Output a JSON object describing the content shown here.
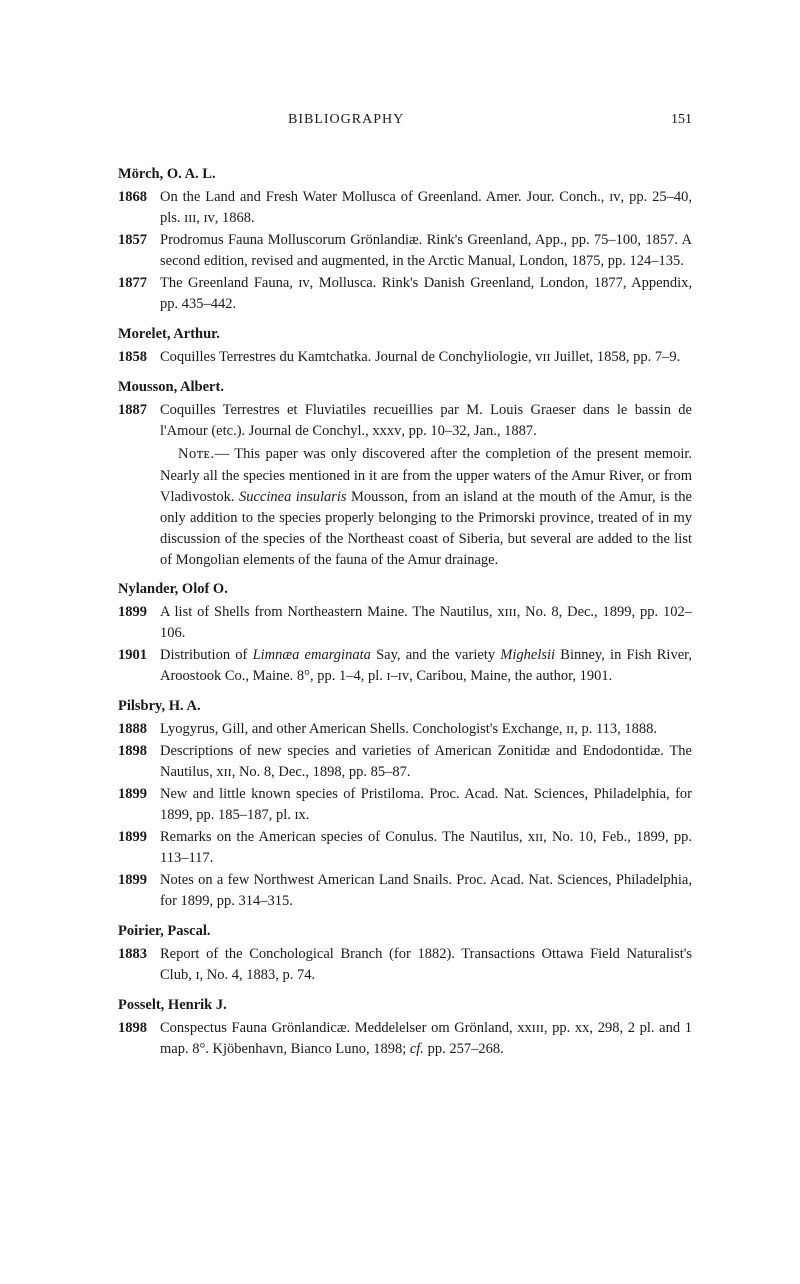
{
  "header": {
    "title": "BIBLIOGRAPHY",
    "page": "151"
  },
  "sections": [
    {
      "author": "Mörch, O. A. L.",
      "entries": [
        {
          "year": "1868",
          "text": "On the Land and Fresh Water Mollusca of Greenland. Amer. Jour. Conch., ɪᴠ, pp. 25–40, pls. ɪɪɪ, ɪᴠ, 1868."
        },
        {
          "year": "1857",
          "text": "Prodromus Fauna Molluscorum Grönlandiæ. Rink's Greenland, App., pp. 75–100, 1857. A second edition, revised and augmented, in the Arctic Manual, London, 1875, pp. 124–135."
        },
        {
          "year": "1877",
          "text": "The Greenland Fauna, ɪᴠ, Mollusca. Rink's Danish Greenland, London, 1877, Appendix, pp. 435–442."
        }
      ]
    },
    {
      "author": "Morelet, Arthur.",
      "entries": [
        {
          "year": "1858",
          "text": "Coquilles Terrestres du Kamtchatka. Journal de Conchyliologie, ᴠɪɪ Juillet, 1858, pp. 7–9."
        }
      ]
    },
    {
      "author": "Mousson, Albert.",
      "entries": [
        {
          "year": "1887",
          "text": "Coquilles Terrestres et Fluviatiles recueillies par M. Louis Graeser dans le bassin de l'Amour (etc.). Journal de Conchyl., xxxᴠ, pp. 10–32, Jan., 1887."
        }
      ],
      "note": {
        "lead": "Nᴏᴛᴇ.",
        "body": "— This paper was only discovered after the completion of the present memoir. Nearly all the species mentioned in it are from the upper waters of the Amur River, or from Vladivostok. <span class=\"ital\">Succinea insularis</span> Mousson, from an island at the mouth of the Amur, is the only addition to the species properly belonging to the Primorski province, treated of in my discussion of the species of the Northeast coast of Siberia, but several are added to the list of Mongolian elements of the fauna of the Amur drainage."
      }
    },
    {
      "author": "Nylander, Olof O.",
      "entries": [
        {
          "year": "1899",
          "text": "A list of Shells from Northeastern Maine. The Nautilus, xɪɪɪ, No. 8, Dec., 1899, pp. 102–106."
        },
        {
          "year": "1901",
          "text": "Distribution of <span class=\"ital\">Limnæa emarginata</span> Say, and the variety <span class=\"ital\">Mighelsii</span> Binney, in Fish River, Aroostook Co., Maine. 8°, pp. 1–4, pl. ɪ–ɪᴠ, Caribou, Maine, the author, 1901."
        }
      ]
    },
    {
      "author": "Pilsbry, H. A.",
      "entries": [
        {
          "year": "1888",
          "text": "Lyogyrus, Gill, and other American Shells. Conchologist's Exchange, ɪɪ, p. 113, 1888."
        },
        {
          "year": "1898",
          "text": "Descriptions of new species and varieties of American Zonitidæ and Endodontidæ. The Nautilus, xɪɪ, No. 8, Dec., 1898, pp. 85–87."
        },
        {
          "year": "1899",
          "text": "New and little known species of Pristiloma. Proc. Acad. Nat. Sciences, Philadelphia, for 1899, pp. 185–187, pl. ɪx."
        },
        {
          "year": "1899",
          "text": "Remarks on the American species of Conulus. The Nautilus, xɪɪ, No. 10, Feb., 1899, pp. 113–117."
        },
        {
          "year": "1899",
          "text": "Notes on a few Northwest American Land Snails. Proc. Acad. Nat. Sciences, Philadelphia, for 1899, pp. 314–315."
        }
      ]
    },
    {
      "author": "Poirier, Pascal.",
      "entries": [
        {
          "year": "1883",
          "text": "Report of the Conchological Branch (for 1882). Transactions Ottawa Field Naturalist's Club, ɪ, No. 4, 1883, p. 74."
        }
      ]
    },
    {
      "author": "Posselt, Henrik J.",
      "entries": [
        {
          "year": "1898",
          "text": "Conspectus Fauna Grönlandicæ. Meddelelser om Grönland, xxɪɪɪ, pp. xx, 298, 2 pl. and 1 map. 8°. Kjöbenhavn, Bianco Luno, 1898; <span class=\"ital\">cf.</span> pp. 257–268."
        }
      ]
    }
  ]
}
